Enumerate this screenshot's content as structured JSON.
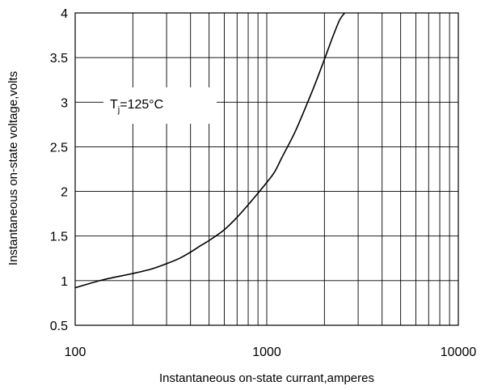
{
  "chart_data": {
    "type": "line",
    "title": "",
    "xlabel": "Instantaneous on-state currant,amperes",
    "ylabel": "Instantaneous on-state voltage,volts",
    "x_scale": "log",
    "xlim": [
      100,
      10000
    ],
    "ylim": [
      0.5,
      4
    ],
    "x_ticks": [
      100,
      1000,
      10000
    ],
    "x_tick_labels": [
      "100",
      "1000",
      "10000"
    ],
    "y_ticks": [
      0.5,
      1,
      1.5,
      2,
      2.5,
      3,
      3.5,
      4
    ],
    "y_tick_labels": [
      "0.5",
      "1",
      "1.5",
      "2",
      "2.5",
      "3",
      "3.5",
      "4"
    ],
    "grid": true,
    "annotation": {
      "main": "T",
      "subscript": "j",
      "suffix": "=125°C"
    },
    "series": [
      {
        "x": [
          100,
          140,
          200,
          250,
          300,
          350,
          400,
          450,
          500,
          600,
          700,
          800,
          900,
          1000,
          1100,
          1200,
          1400,
          1600,
          1800,
          2000,
          2200,
          2400,
          2550
        ],
        "y": [
          0.92,
          1.01,
          1.08,
          1.13,
          1.19,
          1.25,
          1.32,
          1.39,
          1.45,
          1.57,
          1.71,
          1.85,
          1.98,
          2.1,
          2.22,
          2.38,
          2.66,
          2.95,
          3.22,
          3.48,
          3.72,
          3.92,
          4.0
        ]
      }
    ],
    "colors": {
      "line": "#000000",
      "grid": "#000000",
      "background": "#ffffff"
    }
  }
}
